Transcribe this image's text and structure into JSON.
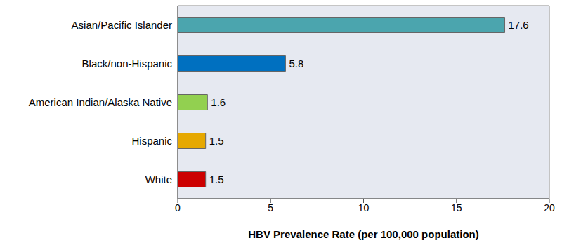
{
  "chart_data": {
    "type": "bar",
    "orientation": "horizontal",
    "categories": [
      "Asian/Pacific Islander",
      "Black/non-Hispanic",
      "American Indian/Alaska Native",
      "Hispanic",
      "White"
    ],
    "values": [
      17.6,
      5.8,
      1.6,
      1.5,
      1.5
    ],
    "colors": [
      "#4BA5AE",
      "#0070C0",
      "#92D050",
      "#E6A800",
      "#CC0000"
    ],
    "x_label": "HBV Prevalence Rate (per 100,000 population)",
    "xlim": [
      0,
      20
    ],
    "xticks": [
      0,
      5,
      10,
      15,
      20
    ],
    "grid": false,
    "data_labels": true
  }
}
